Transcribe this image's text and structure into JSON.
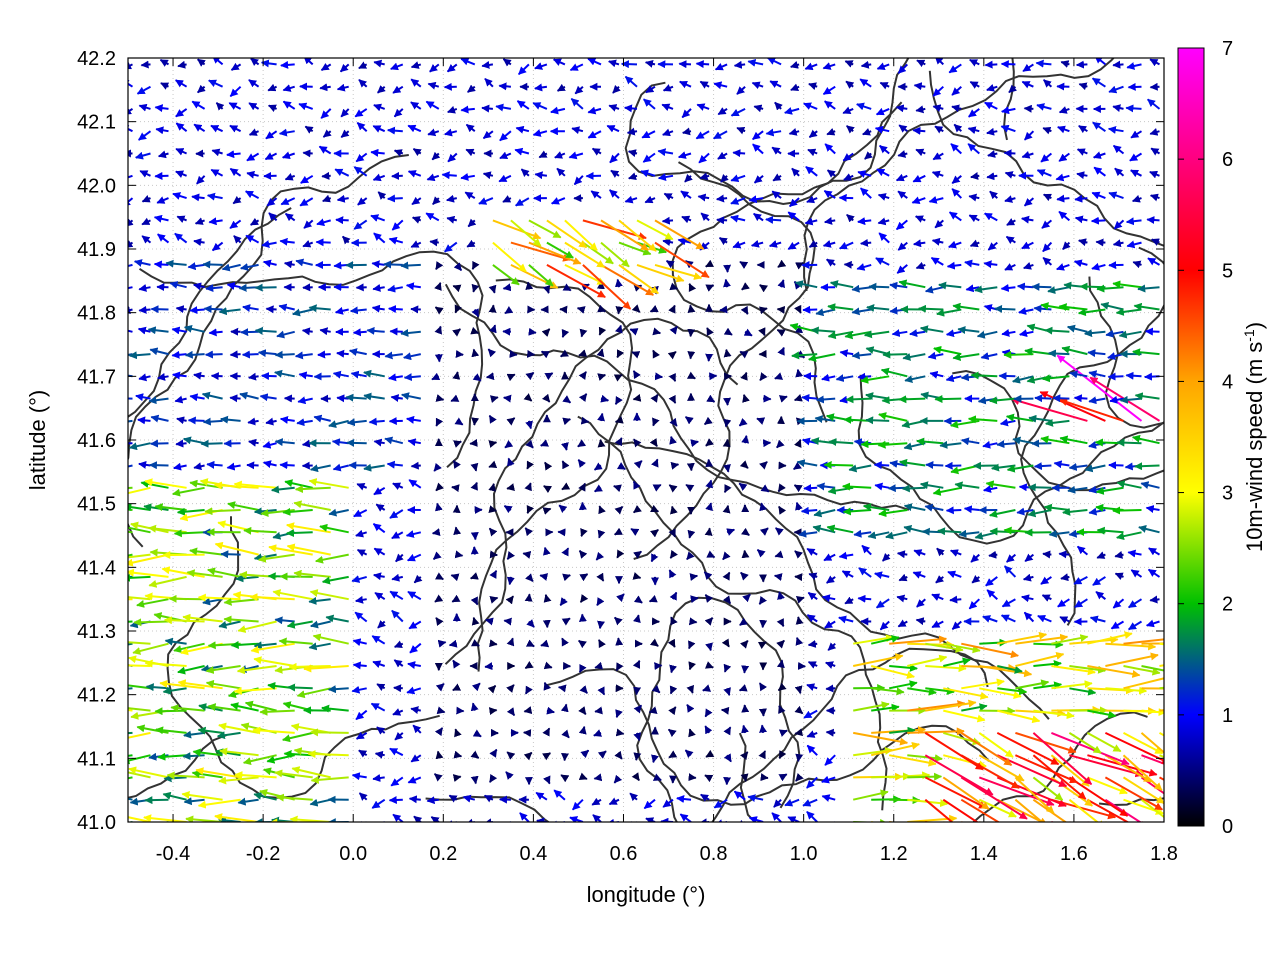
{
  "chart_data": {
    "type": "vector-field",
    "xlabel": "longitude (°)",
    "ylabel": "latitude (°)",
    "xlim": [
      -0.5,
      1.8
    ],
    "ylim": [
      41.0,
      42.2
    ],
    "xticks": [
      "-0.4",
      "-0.2",
      "0.0",
      "0.2",
      "0.4",
      "0.6",
      "0.8",
      "1.0",
      "1.2",
      "1.4",
      "1.6",
      "1.8"
    ],
    "xtick_values": [
      -0.4,
      -0.2,
      0.0,
      0.2,
      0.4,
      0.6,
      0.8,
      1.0,
      1.2,
      1.4,
      1.6,
      1.8
    ],
    "yticks": [
      "41.0",
      "41.1",
      "41.2",
      "41.3",
      "41.4",
      "41.5",
      "41.6",
      "41.7",
      "41.8",
      "41.9",
      "42.0",
      "42.1",
      "42.2"
    ],
    "ytick_values": [
      41.0,
      41.1,
      41.2,
      41.3,
      41.4,
      41.5,
      41.6,
      41.7,
      41.8,
      41.9,
      42.0,
      42.1,
      42.2
    ],
    "grid": true,
    "colorbar": {
      "label_main": "10m-wind speed (m s",
      "label_sup": "-1",
      "label_end": ")",
      "range": [
        0,
        7
      ],
      "ticks": [
        "0",
        "1",
        "2",
        "3",
        "4",
        "5",
        "6",
        "7"
      ],
      "tick_values": [
        0,
        1,
        2,
        3,
        4,
        5,
        6,
        7
      ],
      "colors": [
        "#000000",
        "#0000ff",
        "#00c000",
        "#ffff00",
        "#ffa500",
        "#ff0000",
        "#ff00ff"
      ]
    },
    "contours": "terrain isolines (black)",
    "wind_regions": [
      {
        "region": "west coast band",
        "lon": [
          -0.5,
          0.0
        ],
        "lat": [
          41.0,
          41.55
        ],
        "speed_ms": 2.3,
        "direction": "westward"
      },
      {
        "region": "west mid",
        "lon": [
          -0.5,
          0.15
        ],
        "lat": [
          41.55,
          41.9
        ],
        "speed_ms": 1.1,
        "direction": "westward"
      },
      {
        "region": "central valley",
        "lon": [
          0.15,
          1.0
        ],
        "lat": [
          41.05,
          41.9
        ],
        "speed_ms": 0.4,
        "direction": "variable"
      },
      {
        "region": "east mid",
        "lon": [
          1.0,
          1.8
        ],
        "lat": [
          41.45,
          41.85
        ],
        "speed_ms": 1.5,
        "direction": "westward"
      },
      {
        "region": "north ridge",
        "lon": [
          0.3,
          0.7
        ],
        "lat": [
          41.85,
          41.95
        ],
        "speed_ms": 3.4,
        "direction": "southeastward"
      },
      {
        "region": "southeast coast",
        "lon": [
          1.1,
          1.8
        ],
        "lat": [
          41.0,
          41.3
        ],
        "speed_ms": 3.0,
        "direction": "eastward"
      },
      {
        "region": "southeast corner",
        "lon": [
          1.25,
          1.8
        ],
        "lat": [
          41.0,
          41.15
        ],
        "speed_ms": 4.3,
        "direction": "southeastward"
      },
      {
        "region": "isolated strong",
        "lon": [
          1.62,
          1.8
        ],
        "lat": [
          41.6,
          41.65
        ],
        "speed_ms": 5.6,
        "direction": "northwestward"
      }
    ]
  }
}
